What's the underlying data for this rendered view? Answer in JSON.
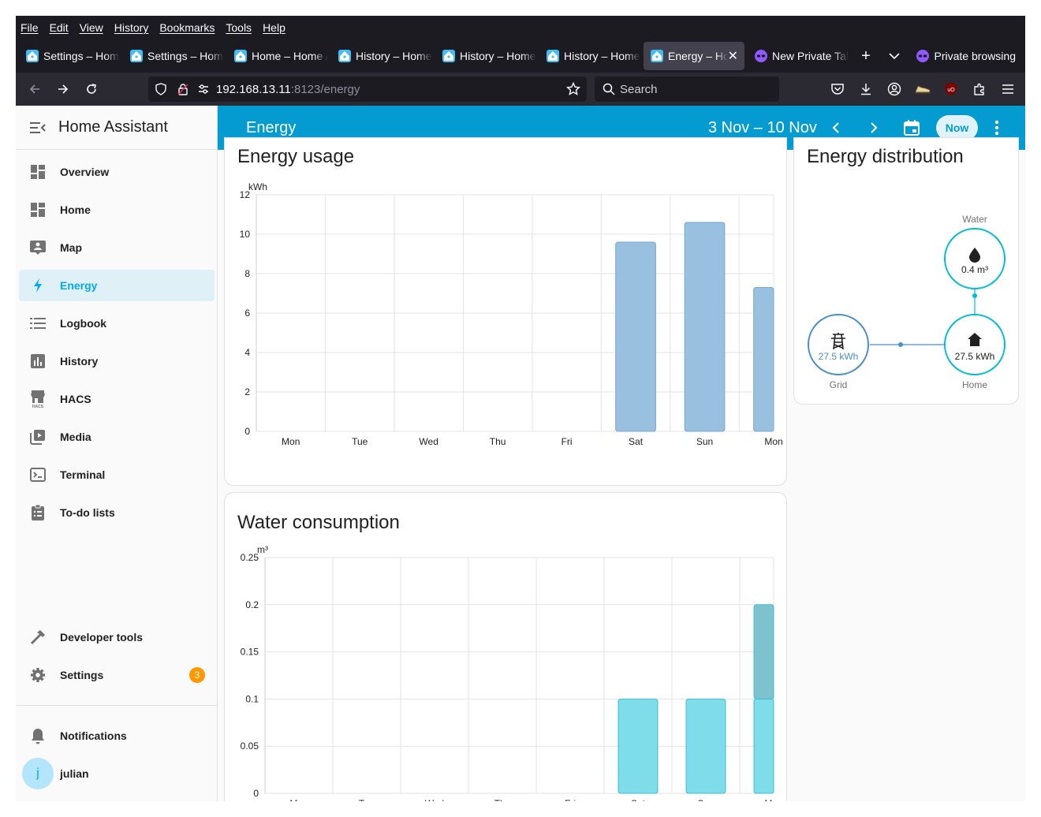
{
  "browser": {
    "menu": [
      "File",
      "Edit",
      "View",
      "History",
      "Bookmarks",
      "Tools",
      "Help"
    ],
    "tabs": [
      {
        "label": "Settings – Home Assistant"
      },
      {
        "label": "Settings – Home Assistant"
      },
      {
        "label": "Home – Home Assistant"
      },
      {
        "label": "History – Home Assistant"
      },
      {
        "label": "History – Home Assistant"
      },
      {
        "label": "History – Home Assistant"
      },
      {
        "label": "Energy – Home Assistant",
        "active": true
      },
      {
        "label": "New Private Tab"
      }
    ],
    "private_label": "Private browsing",
    "url_host": "192.168.13.11",
    "url_rest": ":8123/energy",
    "search_placeholder": "Search"
  },
  "app": {
    "title": "Home Assistant",
    "sidebar": {
      "items": [
        {
          "label": "Overview",
          "icon": "view-dashboard-icon"
        },
        {
          "label": "Home",
          "icon": "view-dashboard-icon"
        },
        {
          "label": "Map",
          "icon": "map-icon"
        },
        {
          "label": "Energy",
          "icon": "lightning-bolt-icon",
          "selected": true
        },
        {
          "label": "Logbook",
          "icon": "format-list-icon"
        },
        {
          "label": "History",
          "icon": "chart-box-icon"
        },
        {
          "label": "HACS",
          "icon": "hacs-store-icon"
        },
        {
          "label": "Media",
          "icon": "play-box-multiple-icon"
        },
        {
          "label": "Terminal",
          "icon": "console-icon"
        },
        {
          "label": "To-do lists",
          "icon": "clipboard-list-icon"
        }
      ],
      "developer_tools": "Developer tools",
      "settings": "Settings",
      "settings_badge": "3",
      "notifications": "Notifications",
      "user_initial": "j",
      "user_name": "julian"
    },
    "header": {
      "title": "Energy",
      "date_range": "3 Nov – 10 Nov",
      "now_label": "Now"
    }
  },
  "energy_usage": {
    "title": "Energy usage",
    "chart_data": {
      "type": "bar",
      "ylabel": "kWh",
      "ylim": [
        0,
        12
      ],
      "yticks": [
        "0",
        "2",
        "4",
        "6",
        "8",
        "10",
        "12"
      ],
      "categories": [
        "Mon",
        "Tue",
        "Wed",
        "Thu",
        "Fri",
        "Sat",
        "Sun",
        "Mon"
      ],
      "values": [
        0,
        0,
        0,
        0,
        0,
        9.6,
        10.6,
        7.3
      ],
      "color": "#99c0de"
    }
  },
  "water_consumption": {
    "title": "Water consumption",
    "chart_data": {
      "type": "bar",
      "stacked": true,
      "ylabel": "m³",
      "ylim": [
        0,
        0.25
      ],
      "yticks": [
        "0",
        "0.05",
        "0.1",
        "0.15",
        "0.2",
        "0.25"
      ],
      "categories": [
        "Mon",
        "Tue",
        "Wed",
        "Thu",
        "Fri",
        "Sat",
        "Sun",
        "Mon"
      ],
      "series": [
        {
          "values": [
            0,
            0,
            0,
            0,
            0,
            0.1,
            0.1,
            0.1
          ],
          "color": "#7fdde9"
        },
        {
          "values": [
            0,
            0,
            0,
            0,
            0,
            0,
            0,
            0.1
          ],
          "color": "#7dc2cd"
        }
      ]
    }
  },
  "energy_distribution": {
    "title": "Energy distribution",
    "water": {
      "label": "Water",
      "value": "0.4 m³"
    },
    "grid": {
      "label": "Grid",
      "value": "27.5 kWh"
    },
    "home": {
      "label": "Home",
      "value": "27.5 kWh"
    }
  }
}
